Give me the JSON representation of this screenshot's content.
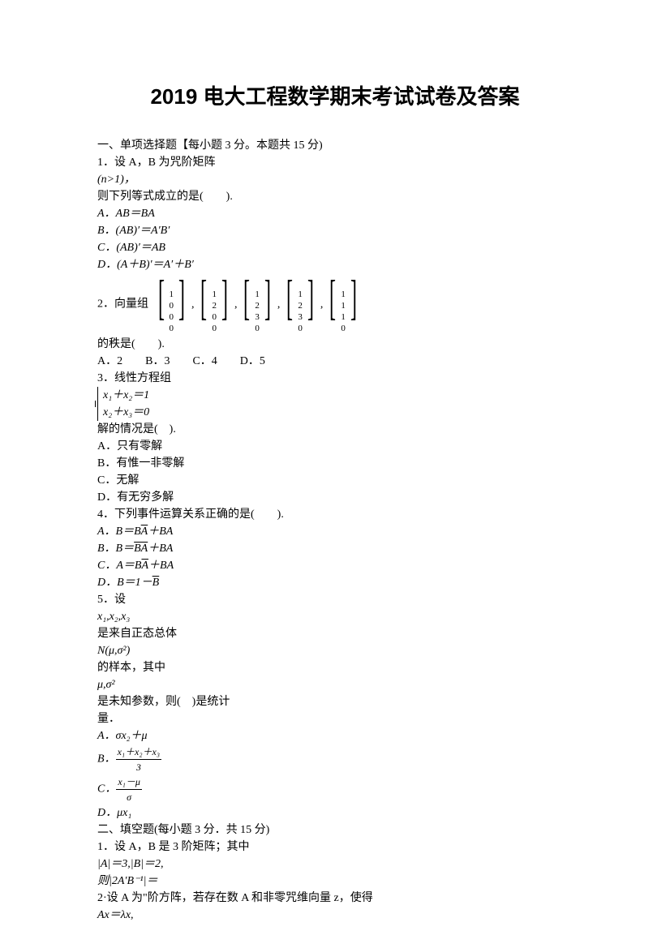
{
  "title": "2019 电大工程数学期末考试试卷及答案",
  "section1": {
    "header": "一、单项选择题【每小题 3 分。本题共 15 分)",
    "q1": {
      "stem1": "1．设 A，B 为咒阶矩阵",
      "cond": "(n>1)，",
      "stem2": "则下列等式成立的是(　　).",
      "optA": "A．AB＝BA",
      "optB": "B．(AB)′＝A′B′",
      "optC": "C．(AB)′＝AB",
      "optD": "D．(A＋B)′＝A′＋B′"
    },
    "q2": {
      "label": "2．向量组",
      "vectors": [
        [
          "1",
          "0",
          "0",
          "0"
        ],
        [
          "1",
          "2",
          "0",
          "0"
        ],
        [
          "1",
          "2",
          "3",
          "0"
        ],
        [
          "1",
          "2",
          "3",
          "0"
        ],
        [
          "1",
          "1",
          "1",
          "0"
        ]
      ],
      "stem": "的秩是(　　).",
      "opts": "A．2　　B．3　　C．4　　D．5"
    },
    "q3": {
      "stem": "3．线性方程组",
      "eq1": "x₁＋x₂＝1",
      "eq2": "x₂＋x₃＝0",
      "stem2": "解的情况是(　).",
      "optA": "A．只有零解",
      "optB": "B．有惟一非零解",
      "optC": "C．无解",
      "optD": "D．有无穷多解"
    },
    "q4": {
      "stem": "4．下列事件运算关系正确的是(　　).",
      "optA_pre": "A．B＝B",
      "optA_over": "A",
      "optA_post": "＋BA",
      "optB_pre": "B．B＝",
      "optB_over": "BA",
      "optB_post": "＋BA",
      "optC_pre": "C．A＝B",
      "optC_over": "A",
      "optC_post": "＋BA",
      "optD_pre": "D．B＝1－",
      "optD_over": "B"
    },
    "q5": {
      "stem": "5．设",
      "vars": "x₁,x₂,x₃",
      "stem2": "是来自正态总体",
      "dist": "N(μ,σ²)",
      "stem3": "的样本，其中",
      "params": "μ,σ²",
      "stem4": "是未知参数，则(　)是统计",
      "stem5": "量．",
      "optA": "A．σx₂＋μ",
      "optB_label": "B．",
      "optB_num": "x₁＋x₂＋x₃",
      "optB_den": "3",
      "optC_label": "C．",
      "optC_num": "x₁－μ",
      "optC_den": "σ",
      "optD": "D．μx₁"
    }
  },
  "section2": {
    "header": "二、填空题(每小题 3 分．共 15 分)",
    "q1": {
      "stem": "1．设 A，B 是 3 阶矩阵；其中",
      "cond": "|A|＝3,|B|＝2,",
      "ask": "则|2A′B⁻¹|＝"
    },
    "q2": {
      "stem": "2·设 A 为\"阶方阵，若存在数 A 和非零咒维向量 z，使得",
      "eq": "Ax＝λx,"
    }
  }
}
